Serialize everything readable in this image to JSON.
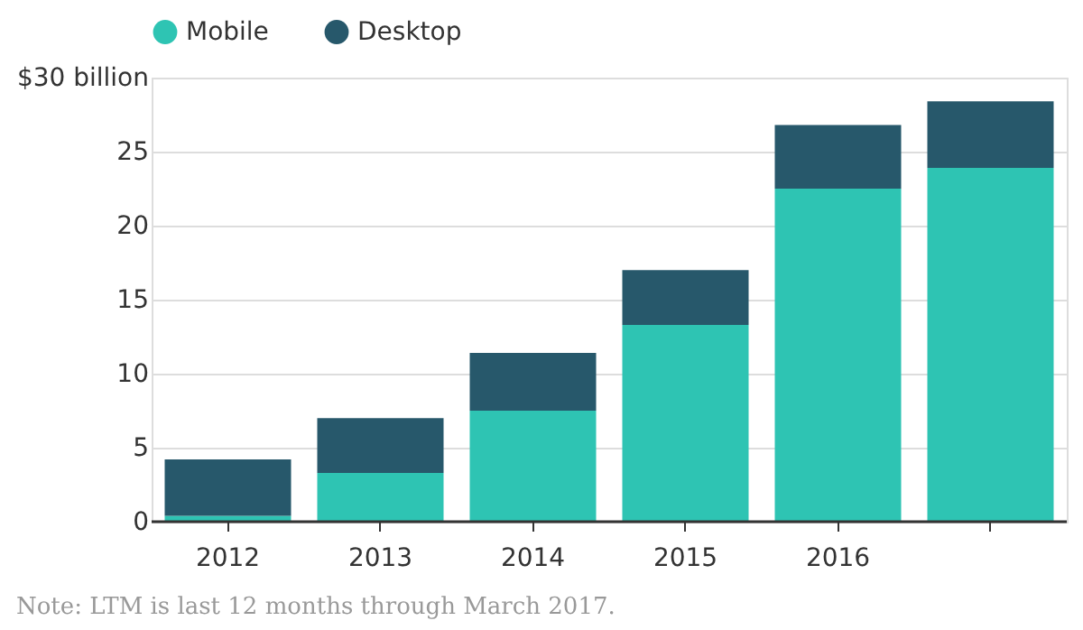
{
  "chart_data": {
    "type": "bar",
    "stacked": true,
    "categories": [
      "2012",
      "2013",
      "2014",
      "2015",
      "2016",
      null
    ],
    "series": [
      {
        "name": "Mobile",
        "color": "#2ec4b3",
        "values": [
          0.4,
          3.3,
          7.5,
          13.3,
          22.5,
          23.9
        ]
      },
      {
        "name": "Desktop",
        "color": "#27586b",
        "values": [
          3.8,
          3.7,
          3.9,
          3.7,
          4.3,
          4.5
        ]
      }
    ],
    "ylim": [
      0,
      30
    ],
    "yticks": [
      0,
      5,
      10,
      15,
      20,
      25,
      {
        "value": 30,
        "label": "$30 billion"
      }
    ],
    "grid": "y",
    "legend": "top left",
    "annotations": [
      "Note: LTM is last 12 months through March 2017."
    ]
  }
}
